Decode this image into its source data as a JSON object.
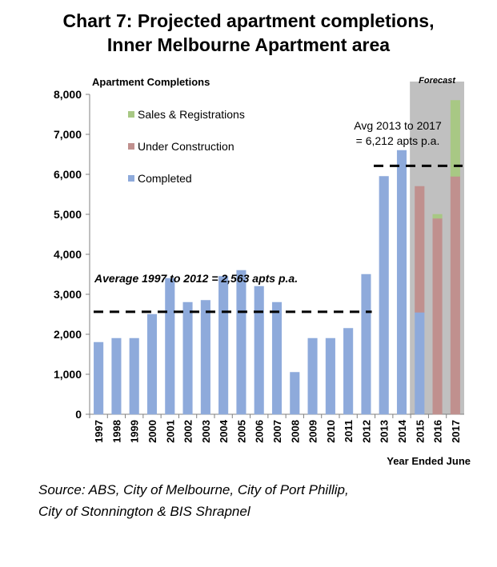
{
  "title_lines": [
    "Chart 7: Projected apartment completions,",
    "Inner Melbourne Apartment area"
  ],
  "source_lines": [
    "Source: ABS, City of Melbourne, City of Port Phillip,",
    "City of Stonnington & BIS Shrapnel"
  ],
  "chart_data": {
    "type": "bar",
    "stacked": true,
    "ylabel": "Apartment Completions",
    "xlabel": "Year Ended June",
    "ylim": [
      0,
      8000
    ],
    "yticks": [
      0,
      1000,
      2000,
      3000,
      4000,
      5000,
      6000,
      7000,
      8000
    ],
    "ytick_labels": [
      "0",
      "1,000",
      "2,000",
      "3,000",
      "4,000",
      "5,000",
      "6,000",
      "7,000",
      "8,000"
    ],
    "categories": [
      "1997",
      "1998",
      "1999",
      "2000",
      "2001",
      "2002",
      "2003",
      "2004",
      "2005",
      "2006",
      "2007",
      "2008",
      "2009",
      "2010",
      "2011",
      "2012",
      "2013",
      "2014",
      "2015",
      "2016",
      "2017"
    ],
    "series": [
      {
        "name": "Completed",
        "color": "#8eaadb",
        "values": [
          1800,
          1900,
          1900,
          2500,
          3400,
          2800,
          2850,
          3450,
          3600,
          3200,
          2800,
          1050,
          1900,
          1900,
          2150,
          3500,
          5950,
          6600,
          2550,
          0,
          0
        ]
      },
      {
        "name": "Under Construction",
        "color": "#c0908e",
        "values": [
          0,
          0,
          0,
          0,
          0,
          0,
          0,
          0,
          0,
          0,
          0,
          0,
          0,
          0,
          0,
          0,
          0,
          0,
          3150,
          4900,
          5950
        ]
      },
      {
        "name": "Sales & Registrations",
        "color": "#a8c884",
        "values": [
          0,
          0,
          0,
          0,
          0,
          0,
          0,
          0,
          0,
          0,
          0,
          0,
          0,
          0,
          0,
          0,
          0,
          0,
          0,
          100,
          1900
        ]
      }
    ],
    "legend_order": [
      "Sales & Registrations",
      "Under Construction",
      "Completed"
    ],
    "legend_position": "top-left",
    "forecast": {
      "label": "Forecast",
      "from": "2015",
      "to": "2017",
      "color": "#c0c0c0"
    },
    "average_lines": [
      {
        "label": "Average  1997  to 2012 = 2,563  apts p.a.",
        "value": 2563,
        "from": "1997",
        "to": "2012"
      },
      {
        "label_lines": [
          "Avg  2013  to 2017",
          "= 6,212  apts  p.a."
        ],
        "value": 6212,
        "from": "2013",
        "to": "2017"
      }
    ],
    "grid": false
  }
}
